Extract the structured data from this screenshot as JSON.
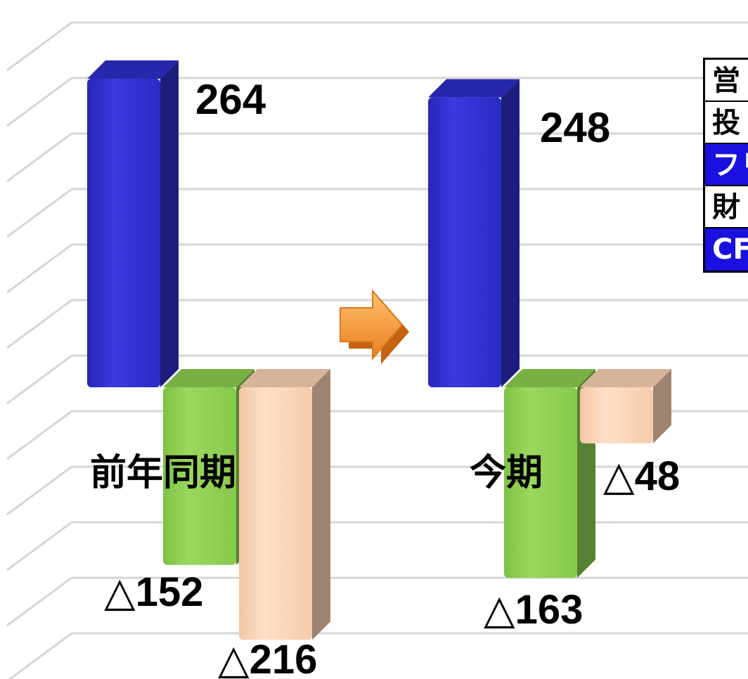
{
  "chart_data": {
    "type": "bar",
    "categories": [
      "前年同期",
      "今期"
    ],
    "series": [
      {
        "values": [
          264,
          248
        ],
        "labels": [
          "264",
          "248"
        ],
        "color": "#2e2ecc"
      },
      {
        "values": [
          -152,
          -163
        ],
        "labels": [
          "△152",
          "△163"
        ],
        "color": "#8ecf50"
      },
      {
        "values": [
          -216,
          -48
        ],
        "labels": [
          "△216",
          "△48"
        ],
        "color": "#fdd3b4"
      }
    ],
    "ylim": [
      -270,
      300
    ],
    "grid": true,
    "arrow_color": "#f59a30"
  },
  "legend": {
    "rows": [
      {
        "text": "営",
        "highlight": false
      },
      {
        "text": "投",
        "highlight": false
      },
      {
        "text": "フリ",
        "highlight": true
      },
      {
        "text": "財",
        "highlight": false
      },
      {
        "text": "CF",
        "highlight": true
      }
    ]
  }
}
